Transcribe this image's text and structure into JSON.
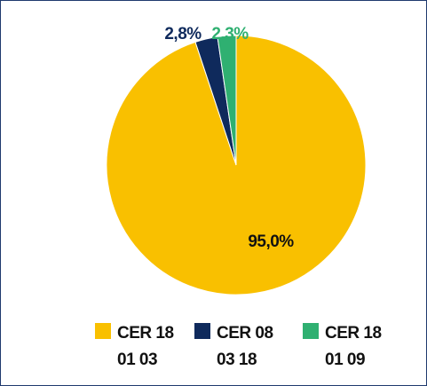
{
  "chart_data": {
    "type": "pie",
    "categories": [
      "CER 18 01 03",
      "CER 08 03 18",
      "CER 18 01 09"
    ],
    "values": [
      95.0,
      2.8,
      2.3
    ],
    "value_labels": [
      "95,0%",
      "2,8%",
      "2,3%"
    ],
    "colors": [
      "#f9c000",
      "#0f2a5c",
      "#2fb071"
    ]
  }
}
